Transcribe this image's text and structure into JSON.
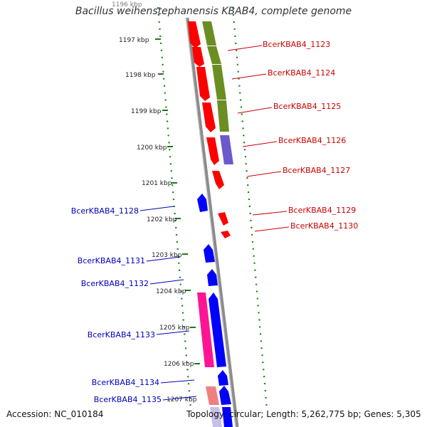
{
  "title": "Bacillus weihenstephanensis KBAB4, complete genome",
  "footer": {
    "accession": "Accession: NC_010184",
    "topology": "Topology: circular; Length: 5,262,775 bp; Genes: 5,305"
  },
  "colors": {
    "backbone": "#8c8c8c",
    "tick_mark": "#1a7a1a",
    "cds_red": "#ff0000",
    "cds_olive": "#6b8e23",
    "cds_slate": "#6a5acd",
    "cds_blue": "#0000ff",
    "cds_pink": "#ff1493",
    "cds_lightred": "#f08080",
    "label_red": "#cc0000",
    "label_blue": "#0000bb"
  },
  "ticks": [
    "1196 kbp",
    "1197 kbp",
    "1198 kbp",
    "1199 kbp",
    "1200 kbp",
    "1201 kbp",
    "1202 kbp",
    "1203 kbp",
    "1204 kbp",
    "1205 kbp",
    "1206 kbp",
    "1207 kbp"
  ],
  "genes_right": [
    {
      "label": "BcerKBAB4_1123"
    },
    {
      "label": "BcerKBAB4_1124"
    },
    {
      "label": "BcerKBAB4_1125"
    },
    {
      "label": "BcerKBAB4_1126"
    },
    {
      "label": "BcerKBAB4_1127"
    },
    {
      "label": "BcerKBAB4_1129"
    },
    {
      "label": "BcerKBAB4_1130"
    }
  ],
  "genes_left": [
    {
      "label": "BcerKBAB4_1128"
    },
    {
      "label": "BcerKBAB4_1131"
    },
    {
      "label": "BcerKBAB4_1132"
    },
    {
      "label": "BcerKBAB4_1133"
    },
    {
      "label": "BcerKBAB4_1134"
    },
    {
      "label": "BcerKBAB4_1135"
    }
  ]
}
